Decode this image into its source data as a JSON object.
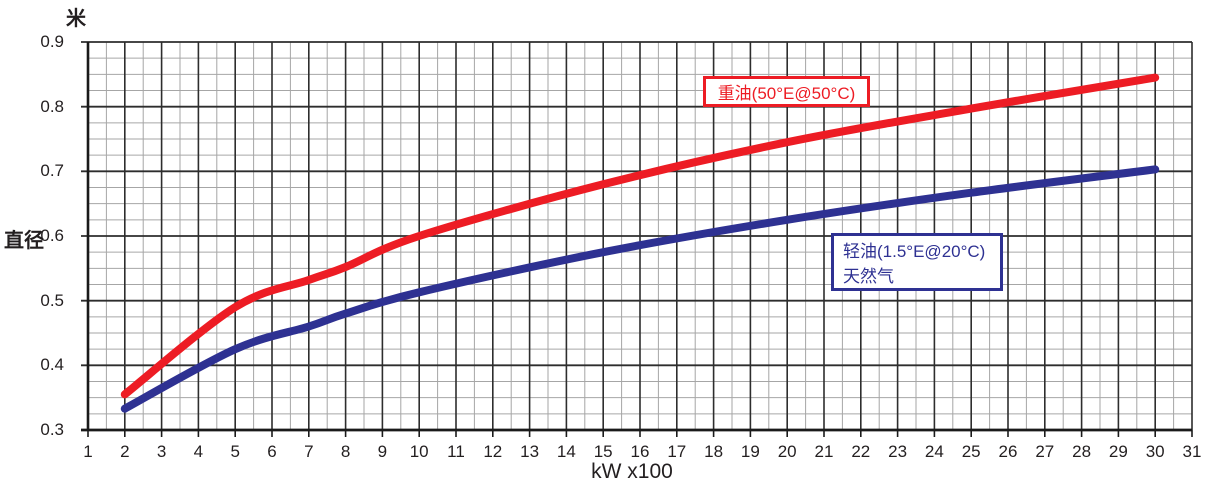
{
  "chart_data": {
    "type": "line",
    "title": "",
    "xlabel": "kW x100",
    "x_axis": {
      "min": 1,
      "max": 31,
      "ticks": [
        1,
        2,
        3,
        4,
        5,
        6,
        7,
        8,
        9,
        10,
        11,
        12,
        13,
        14,
        15,
        16,
        17,
        18,
        19,
        20,
        21,
        22,
        23,
        24,
        25,
        26,
        27,
        28,
        29,
        30,
        31
      ],
      "minor_step": 0.5
    },
    "y_axis": {
      "unit_label": "米",
      "axis_label": "直径",
      "min": 0.3,
      "max": 0.9,
      "ticks": [
        "0.9",
        "0.8",
        "0.7",
        "0.6",
        "0.5",
        "0.4",
        "0.3"
      ],
      "tick_values": [
        0.9,
        0.8,
        0.7,
        0.6,
        0.5,
        0.4,
        0.3
      ],
      "minor_step": 0.025
    },
    "grid": {
      "major": true,
      "minor": true
    },
    "legend_position": "inside-plot",
    "series": [
      {
        "name": "重油(50°E@50°C)",
        "color": "#ed1c24",
        "points": [
          [
            2,
            0.355
          ],
          [
            5,
            0.49
          ],
          [
            7,
            0.532
          ],
          [
            8,
            0.552
          ],
          [
            10,
            0.6
          ],
          [
            15,
            0.68
          ],
          [
            20,
            0.745
          ],
          [
            25,
            0.797
          ],
          [
            30,
            0.845
          ]
        ]
      },
      {
        "name": "轻油(1.5°E@20°C) 天然气",
        "color": "#2e3192",
        "points": [
          [
            2,
            0.333
          ],
          [
            5,
            0.425
          ],
          [
            7,
            0.46
          ],
          [
            8,
            0.48
          ],
          [
            10,
            0.513
          ],
          [
            15,
            0.575
          ],
          [
            20,
            0.625
          ],
          [
            25,
            0.667
          ],
          [
            30,
            0.703
          ]
        ]
      }
    ],
    "legend": {
      "heavy_oil": {
        "text": "重油(50°E@50°C)",
        "color": "#ed1c24"
      },
      "light_oil": {
        "line1": "轻油(1.5°E@20°C)",
        "line2": "天然气",
        "color": "#2e3192"
      }
    }
  },
  "colors": {
    "background": "#ffffff",
    "grid_minor": "#a6a6a6",
    "grid_major": "#2d2d2d",
    "axis": "#1a1a1a",
    "text": "#231f20",
    "heavy_oil": "#ed1c24",
    "light_oil": "#2e3192"
  }
}
